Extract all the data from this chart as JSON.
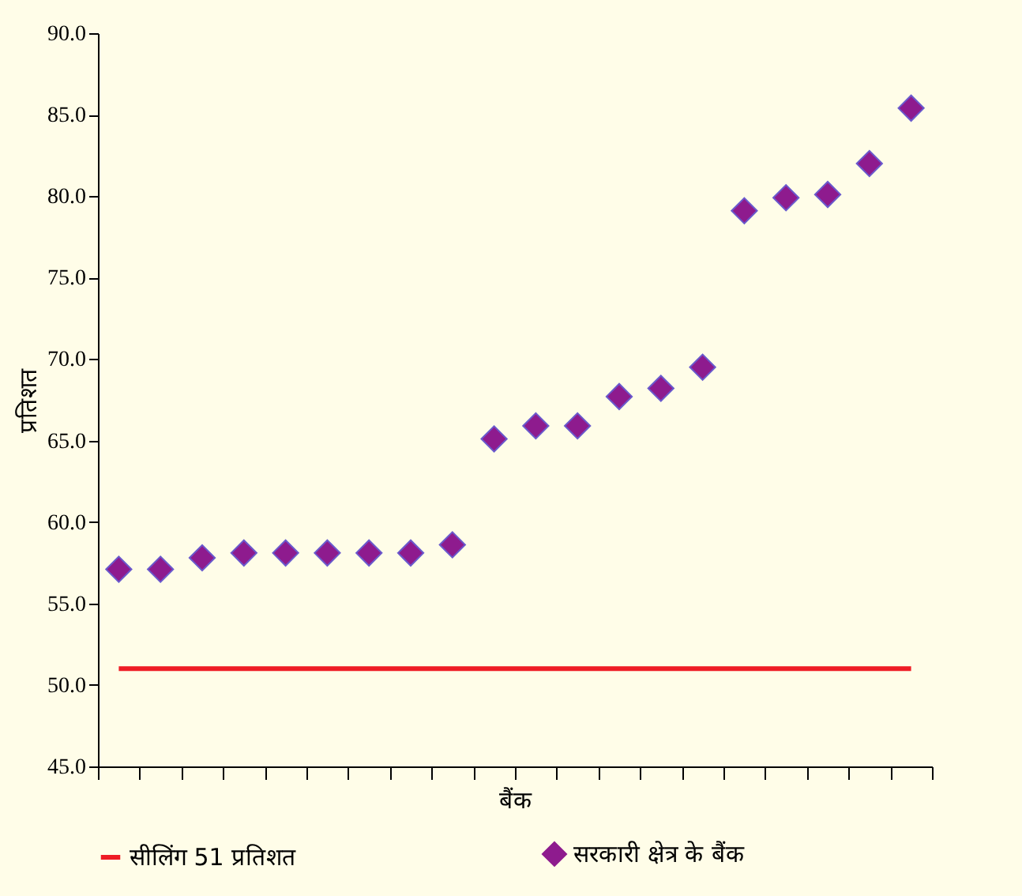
{
  "chart_data": {
    "type": "scatter",
    "xlabel": "बैंक",
    "ylabel": "प्रतिशत",
    "categories": [
      null,
      null,
      null,
      null,
      null,
      null,
      null,
      null,
      null,
      null,
      null,
      null,
      null,
      null,
      null,
      null,
      null,
      null,
      null,
      null
    ],
    "series": [
      {
        "name": "सीलिंग 51 प्रतिशत",
        "type": "line",
        "color": "#ee1c25",
        "line_style": "solid",
        "values": [
          51,
          51,
          51,
          51,
          51,
          51,
          51,
          51,
          51,
          51,
          51,
          51,
          51,
          51,
          51,
          51,
          51,
          51,
          51,
          51
        ]
      },
      {
        "name": "सरकारी क्षेत्र के बैंक",
        "color": "#8e1b8e",
        "marker": "diamond",
        "values": [
          57.1,
          57.1,
          57.8,
          58.1,
          58.1,
          58.1,
          58.1,
          58.1,
          58.6,
          65.1,
          65.9,
          65.9,
          67.7,
          68.2,
          69.5,
          79.1,
          79.9,
          80.1,
          82.0,
          85.4
        ]
      }
    ],
    "ylim": [
      45,
      90
    ],
    "yticks": [
      {
        "value": 45,
        "label": "45.0"
      },
      {
        "value": 50,
        "label": "50.0"
      },
      {
        "value": 55,
        "label": "55.0"
      },
      {
        "value": 60,
        "label": "60.0"
      },
      {
        "value": 65,
        "label": "65.0"
      },
      {
        "value": 70,
        "label": "70.0"
      },
      {
        "value": 75,
        "label": "75.0"
      },
      {
        "value": 80,
        "label": "80.0"
      },
      {
        "value": 85,
        "label": "85.0"
      },
      {
        "value": 90,
        "label": "90.0"
      }
    ],
    "grid": false,
    "legend": "bottom"
  }
}
